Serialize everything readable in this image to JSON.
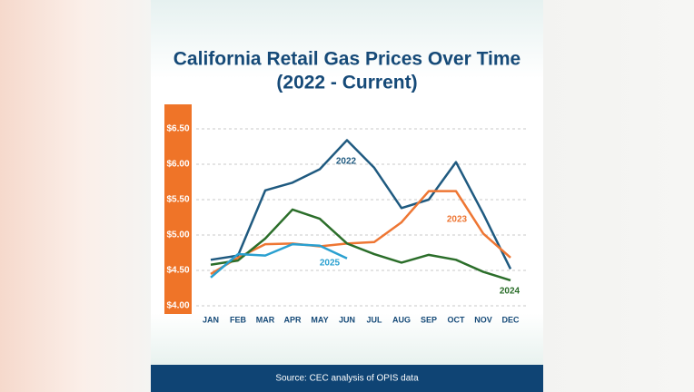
{
  "chart_data": {
    "type": "line",
    "title": "California Retail Gas Prices Over Time",
    "subtitle": "(2022 - Current)",
    "source": "Source: CEC analysis of OPIS data",
    "categories": [
      "JAN",
      "FEB",
      "MAR",
      "APR",
      "MAY",
      "JUN",
      "JUL",
      "AUG",
      "SEP",
      "OCT",
      "NOV",
      "DEC"
    ],
    "series": [
      {
        "name": "2022",
        "color": "#1f5a80",
        "values": [
          4.65,
          4.71,
          5.63,
          5.74,
          5.93,
          6.34,
          5.95,
          5.38,
          5.5,
          6.03,
          5.3,
          4.52
        ]
      },
      {
        "name": "2023",
        "color": "#ee7633",
        "values": [
          4.45,
          4.68,
          4.87,
          4.88,
          4.84,
          4.88,
          4.9,
          5.18,
          5.62,
          5.62,
          5.02,
          4.68
        ]
      },
      {
        "name": "2024",
        "color": "#2b6e2a",
        "values": [
          4.58,
          4.64,
          4.95,
          5.36,
          5.23,
          4.88,
          4.73,
          4.61,
          4.72,
          4.65,
          4.48,
          4.36
        ]
      },
      {
        "name": "2025",
        "color": "#2aa0d0",
        "values": [
          4.4,
          4.73,
          4.71,
          4.87,
          4.85,
          4.67,
          null,
          null,
          null,
          null,
          null,
          null
        ]
      }
    ],
    "ylim": [
      4.0,
      6.5
    ],
    "yticks": [
      {
        "value": 4.0,
        "label": "$4.00"
      },
      {
        "value": 4.5,
        "label": "$4.50"
      },
      {
        "value": 5.0,
        "label": "$5.00"
      },
      {
        "value": 5.5,
        "label": "$5.50"
      },
      {
        "value": 6.0,
        "label": "$6.00"
      },
      {
        "value": 6.5,
        "label": "$6.50"
      }
    ],
    "grid": true
  }
}
